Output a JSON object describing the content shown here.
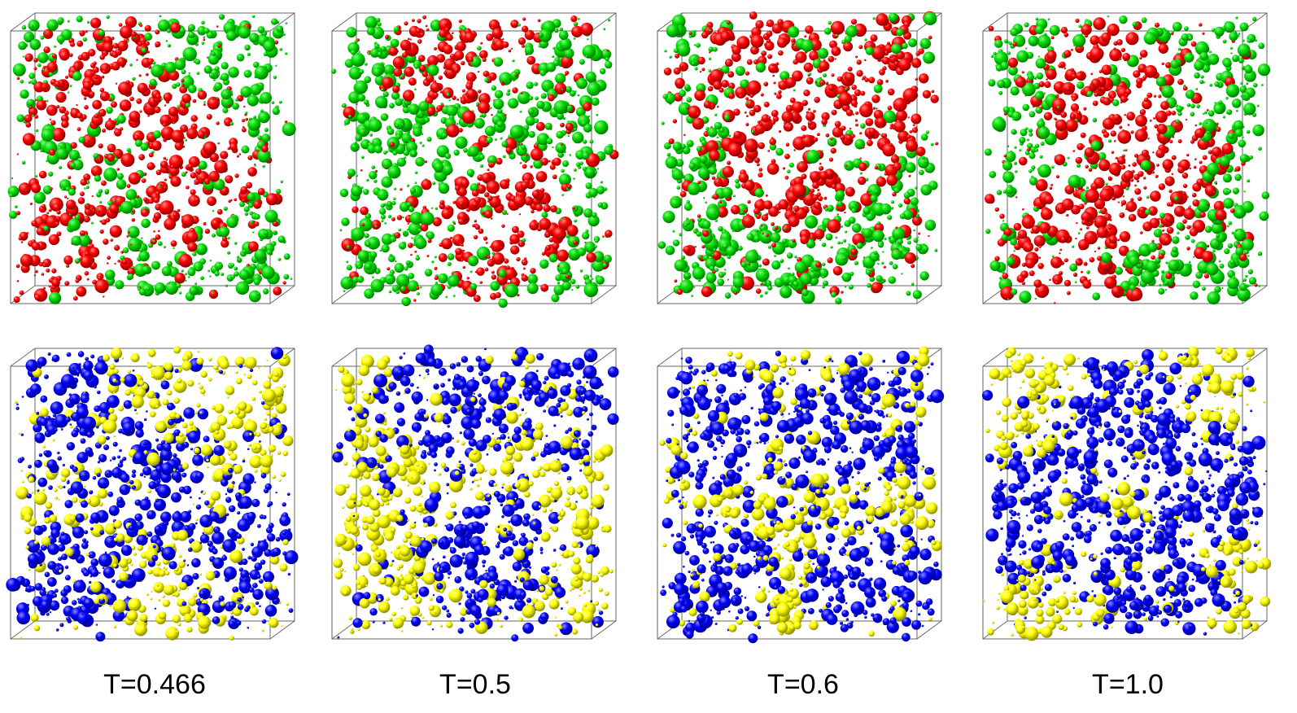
{
  "figure": {
    "captions": [
      "T=0.466",
      "T=0.5",
      "T=0.6",
      "T=1.0"
    ],
    "rows": [
      {
        "row": "top",
        "colors": [
          "#ff0000",
          "#00e000"
        ]
      },
      {
        "row": "bottom",
        "colors": [
          "#0000ff",
          "#ffff00"
        ]
      }
    ]
  }
}
